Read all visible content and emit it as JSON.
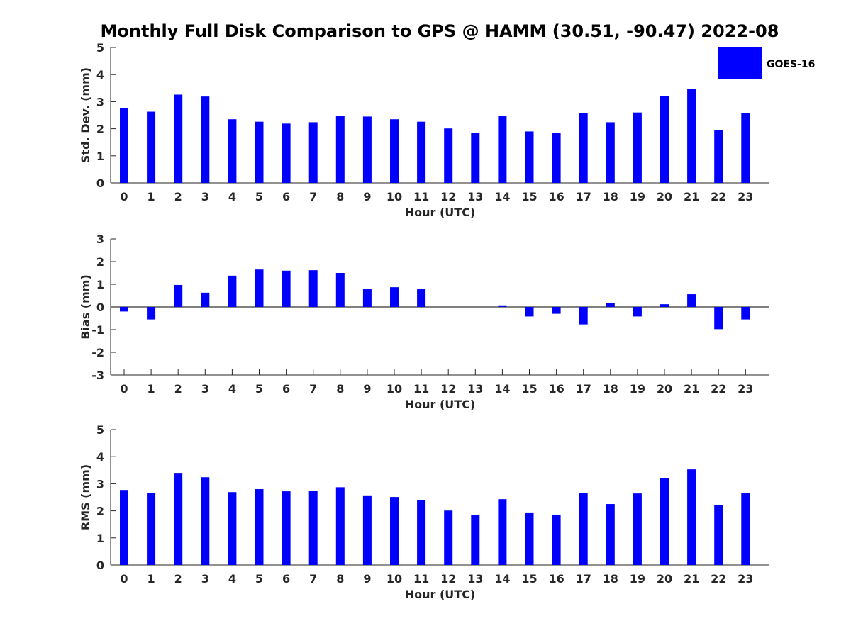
{
  "title": "Monthly Full Disk Comparison to GPS @ HAMM (30.51, -90.47) 2022-08",
  "series_color": "#0000ff",
  "chart_data": [
    {
      "type": "bar",
      "name": "std",
      "ylabel": "Std. Dev. (mm)",
      "xlabel": "Hour (UTC)",
      "ylim": [
        0,
        5
      ],
      "yticks": [
        "0",
        "1",
        "2",
        "3",
        "4",
        "5"
      ],
      "categories": [
        "0",
        "1",
        "2",
        "3",
        "4",
        "5",
        "6",
        "7",
        "8",
        "9",
        "10",
        "11",
        "12",
        "13",
        "14",
        "15",
        "16",
        "17",
        "18",
        "19",
        "20",
        "21",
        "22",
        "23"
      ],
      "series": [
        {
          "name": "GOES-16",
          "values": [
            2.77,
            2.63,
            3.26,
            3.19,
            2.35,
            2.26,
            2.19,
            2.24,
            2.46,
            2.45,
            2.35,
            2.26,
            2.01,
            1.85,
            2.46,
            1.9,
            1.85,
            2.58,
            2.24,
            2.6,
            3.21,
            3.47,
            1.95,
            2.58
          ]
        }
      ],
      "legend": {
        "label": "GOES-16",
        "placement": "top-right"
      }
    },
    {
      "type": "bar",
      "name": "bias",
      "ylabel": "Bias (mm)",
      "xlabel": "Hour (UTC)",
      "ylim": [
        -3,
        3
      ],
      "yticks": [
        "-3",
        "-2",
        "-1",
        "0",
        "1",
        "2",
        "3"
      ],
      "categories": [
        "0",
        "1",
        "2",
        "3",
        "4",
        "5",
        "6",
        "7",
        "8",
        "9",
        "10",
        "11",
        "12",
        "13",
        "14",
        "15",
        "16",
        "17",
        "18",
        "19",
        "20",
        "21",
        "22",
        "23"
      ],
      "series": [
        {
          "name": "GOES-16",
          "values": [
            -0.2,
            -0.55,
            0.97,
            0.63,
            1.38,
            1.65,
            1.6,
            1.62,
            1.5,
            0.78,
            0.87,
            0.78,
            0.0,
            0.0,
            0.07,
            -0.42,
            -0.3,
            -0.77,
            0.18,
            -0.42,
            0.12,
            0.56,
            -0.98,
            -0.55
          ]
        }
      ]
    },
    {
      "type": "bar",
      "name": "rms",
      "ylabel": "RMS (mm)",
      "xlabel": "Hour (UTC)",
      "ylim": [
        0,
        5
      ],
      "yticks": [
        "0",
        "1",
        "2",
        "3",
        "4",
        "5"
      ],
      "categories": [
        "0",
        "1",
        "2",
        "3",
        "4",
        "5",
        "6",
        "7",
        "8",
        "9",
        "10",
        "11",
        "12",
        "13",
        "14",
        "15",
        "16",
        "17",
        "18",
        "19",
        "20",
        "21",
        "22",
        "23"
      ],
      "series": [
        {
          "name": "GOES-16",
          "values": [
            2.77,
            2.67,
            3.4,
            3.24,
            2.69,
            2.8,
            2.72,
            2.74,
            2.87,
            2.57,
            2.51,
            2.4,
            2.01,
            1.84,
            2.43,
            1.94,
            1.86,
            2.66,
            2.25,
            2.64,
            3.21,
            3.53,
            2.2,
            2.65
          ]
        }
      ]
    }
  ]
}
